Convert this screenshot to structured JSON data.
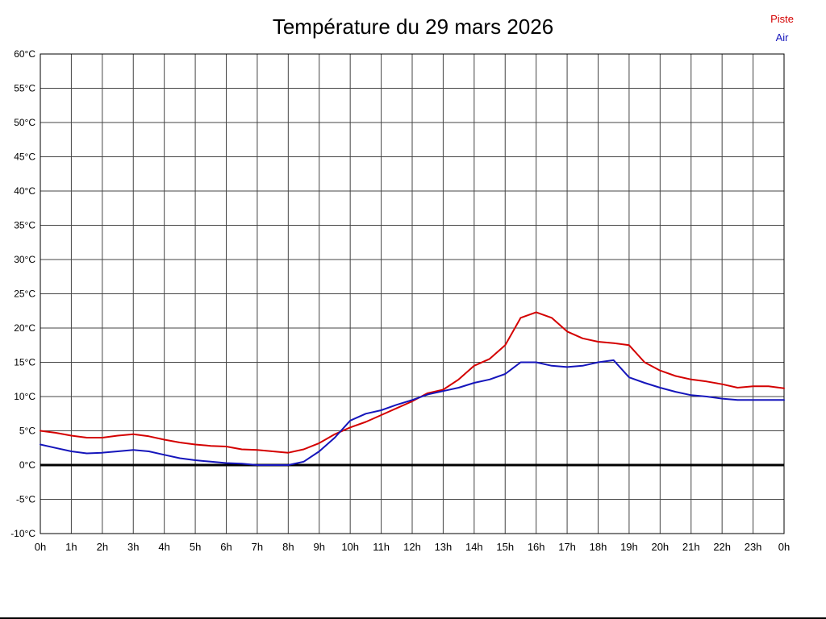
{
  "chart_data": {
    "type": "line",
    "title": "Température du 29 mars 2026",
    "x_unit": "h",
    "y_unit": "°C",
    "xlim": [
      0,
      24
    ],
    "ylim": [
      -10,
      60
    ],
    "x_tick_step": 1,
    "y_tick_step": 5,
    "grid": true,
    "grid_color": "#444444",
    "zero_line_value": 0,
    "legend_position": "top-right",
    "x_hours": [
      0,
      0.5,
      1,
      1.5,
      2,
      2.5,
      3,
      3.5,
      4,
      4.5,
      5,
      5.5,
      6,
      6.5,
      7,
      7.5,
      8,
      8.5,
      9,
      9.5,
      10,
      10.5,
      11,
      11.5,
      12,
      12.5,
      13,
      13.5,
      14,
      14.5,
      15,
      15.5,
      16,
      16.5,
      17,
      17.5,
      18,
      18.5,
      19,
      19.5,
      20,
      20.5,
      21,
      21.5,
      22,
      22.5,
      23,
      23.5,
      24
    ],
    "series": [
      {
        "name": "Piste",
        "color": "#d40000",
        "values": [
          5.0,
          4.7,
          4.3,
          4.0,
          4.0,
          4.3,
          4.5,
          4.2,
          3.7,
          3.3,
          3.0,
          2.8,
          2.7,
          2.3,
          2.2,
          2.0,
          1.8,
          2.3,
          3.2,
          4.5,
          5.5,
          6.3,
          7.3,
          8.3,
          9.3,
          10.5,
          11.0,
          12.5,
          14.5,
          15.5,
          17.5,
          21.5,
          22.3,
          21.5,
          19.5,
          18.5,
          18.0,
          17.8,
          17.5,
          15.0,
          13.8,
          13.0,
          12.5,
          12.2,
          11.8,
          11.3,
          11.5,
          11.5,
          11.2
        ]
      },
      {
        "name": "Air",
        "color": "#1515bb",
        "values": [
          3.0,
          2.5,
          2.0,
          1.7,
          1.8,
          2.0,
          2.2,
          2.0,
          1.5,
          1.0,
          0.7,
          0.5,
          0.3,
          0.2,
          0.0,
          0.0,
          0.0,
          0.5,
          2.0,
          4.0,
          6.5,
          7.5,
          8.0,
          8.8,
          9.5,
          10.3,
          10.8,
          11.3,
          12.0,
          12.5,
          13.3,
          15.0,
          15.0,
          14.5,
          14.3,
          14.5,
          15.0,
          15.3,
          12.8,
          12.0,
          11.3,
          10.7,
          10.2,
          10.0,
          9.7,
          9.5,
          9.5,
          9.5,
          9.5
        ]
      }
    ]
  }
}
